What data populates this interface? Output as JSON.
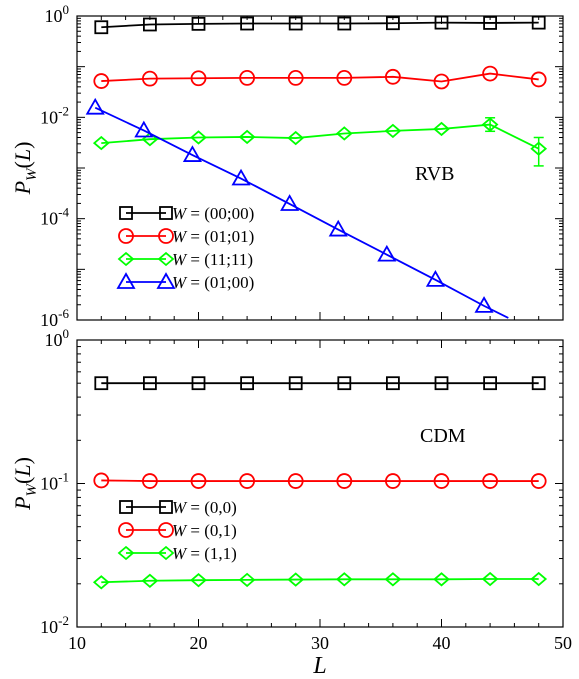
{
  "chart_data": [
    {
      "type": "line",
      "panel_label": "RVB",
      "ylabel": "P_W(L)",
      "yscale": "log",
      "ylim": [
        1e-06,
        1
      ],
      "xlim": [
        10,
        50
      ],
      "y_ticks": [
        {
          "value": 1,
          "base": "10",
          "exp": "0"
        },
        {
          "value": 0.01,
          "base": "10",
          "exp": "-2"
        },
        {
          "value": 0.0001,
          "base": "10",
          "exp": "-4"
        },
        {
          "value": 1e-06,
          "base": "10",
          "exp": "-6"
        }
      ],
      "legend_position": "lower-left",
      "series": [
        {
          "name": "W = (00;00)",
          "name_rest": " = (00;00)",
          "color": "#000000",
          "marker": "square",
          "x": [
            12,
            16,
            20,
            24,
            28,
            32,
            36,
            40,
            44,
            48
          ],
          "y": [
            0.6,
            0.68,
            0.7,
            0.71,
            0.71,
            0.71,
            0.72,
            0.74,
            0.73,
            0.74
          ]
        },
        {
          "name": "W = (01;01)",
          "name_rest": " = (01;01)",
          "color": "#ff0000",
          "marker": "circle",
          "x": [
            12,
            16,
            20,
            24,
            28,
            32,
            36,
            40,
            44,
            48
          ],
          "y": [
            0.052,
            0.058,
            0.059,
            0.06,
            0.06,
            0.06,
            0.063,
            0.051,
            0.073,
            0.056
          ]
        },
        {
          "name": "W = (11;11)",
          "name_rest": " = (11;11)",
          "color": "#00ff00",
          "marker": "diamond",
          "x": [
            12,
            16,
            20,
            24,
            28,
            32,
            36,
            40,
            44,
            48
          ],
          "y": [
            0.0031,
            0.0037,
            0.004,
            0.0041,
            0.0039,
            0.0048,
            0.0054,
            0.0059,
            0.0072,
            0.0024
          ],
          "errors": [
            {
              "x": 44,
              "low": 0.0053,
              "high": 0.0098
            },
            {
              "x": 48,
              "low": 0.0011,
              "high": 0.004
            }
          ]
        },
        {
          "name": "W = (01;00)",
          "name_rest": " = (01;00)",
          "color": "#0000ff",
          "marker": "triangle",
          "x": [
            11.5,
            15.5,
            19.5,
            23.5,
            27.5,
            31.5,
            35.5,
            39.5,
            43.5,
            45.5
          ],
          "y": [
            0.0155,
            0.0055,
            0.0018,
            0.00062,
            0.000195,
            6.1e-05,
            1.95e-05,
            6.2e-06,
            1.9e-06,
            1.1e-06
          ],
          "markers_count": 9
        }
      ]
    },
    {
      "type": "line",
      "panel_label": "CDM",
      "ylabel": "P_W(L)",
      "xlabel": "L",
      "yscale": "log",
      "ylim": [
        0.01,
        1
      ],
      "xlim": [
        10,
        50
      ],
      "x_ticks": [
        10,
        20,
        30,
        40,
        50
      ],
      "y_ticks": [
        {
          "value": 1,
          "base": "10",
          "exp": "0"
        },
        {
          "value": 0.1,
          "base": "10",
          "exp": "-1"
        },
        {
          "value": 0.01,
          "base": "10",
          "exp": "-2"
        }
      ],
      "legend_position": "lower-left",
      "series": [
        {
          "name": "W = (0,0)",
          "name_rest": " = (0,0)",
          "color": "#000000",
          "marker": "square",
          "x": [
            12,
            16,
            20,
            24,
            28,
            32,
            36,
            40,
            44,
            48
          ],
          "y": [
            0.5,
            0.5,
            0.5,
            0.5,
            0.5,
            0.5,
            0.5,
            0.5,
            0.5,
            0.5
          ]
        },
        {
          "name": "W = (0,1)",
          "name_rest": " = (0,1)",
          "color": "#ff0000",
          "marker": "circle",
          "x": [
            12,
            16,
            20,
            24,
            28,
            32,
            36,
            40,
            44,
            48
          ],
          "y": [
            0.105,
            0.104,
            0.104,
            0.104,
            0.104,
            0.104,
            0.104,
            0.104,
            0.104,
            0.104
          ]
        },
        {
          "name": "W = (1,1)",
          "name_rest": " = (1,1)",
          "color": "#00ff00",
          "marker": "diamond",
          "x": [
            12,
            16,
            20,
            24,
            28,
            32,
            36,
            40,
            44,
            48
          ],
          "y": [
            0.0205,
            0.021,
            0.0212,
            0.0213,
            0.0214,
            0.0215,
            0.0215,
            0.0215,
            0.0216,
            0.0216
          ]
        }
      ]
    }
  ]
}
